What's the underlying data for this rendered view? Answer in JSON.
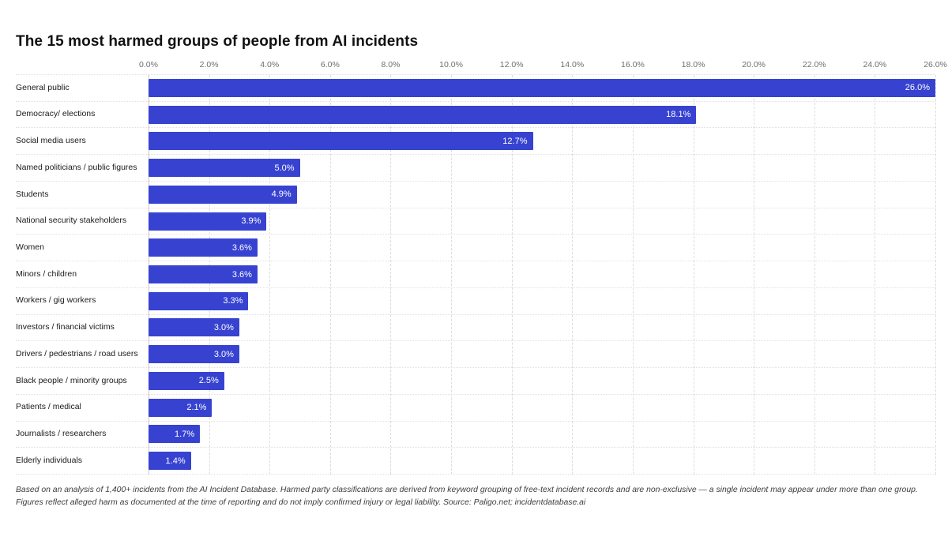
{
  "title": "The 15 most harmed groups of people from AI incidents",
  "chart_data": {
    "type": "bar",
    "orientation": "horizontal",
    "title": "The 15 most harmed groups of people from AI incidents",
    "categories": [
      "General public",
      "Democracy/ elections",
      "Social media users",
      "Named politicians / public figures",
      "Students",
      "National security stakeholders",
      "Women",
      "Minors / children",
      "Workers / gig workers",
      "Investors / financial victims",
      "Drivers / pedestrians / road users",
      "Black people / minority groups",
      "Patients / medical",
      "Journalists / researchers",
      "Elderly individuals"
    ],
    "values": [
      26.0,
      18.1,
      12.7,
      5.0,
      4.9,
      3.9,
      3.6,
      3.6,
      3.3,
      3.0,
      3.0,
      2.5,
      2.1,
      1.7,
      1.4
    ],
    "value_labels": [
      "26.0%",
      "18.1%",
      "12.7%",
      "5.0%",
      "4.9%",
      "3.9%",
      "3.6%",
      "3.6%",
      "3.3%",
      "3.0%",
      "3.0%",
      "2.5%",
      "2.1%",
      "1.7%",
      "1.4%"
    ],
    "xlim": [
      0,
      26
    ],
    "x_ticks": [
      0,
      2,
      4,
      6,
      8,
      10,
      12,
      14,
      16,
      18,
      20,
      22,
      24,
      26
    ],
    "x_tick_labels": [
      "0.0%",
      "2.0%",
      "4.0%",
      "6.0%",
      "8.0%",
      "10.0%",
      "12.0%",
      "14.0%",
      "16.0%",
      "18.0%",
      "20.0%",
      "22.0%",
      "24.0%",
      "26.0%"
    ],
    "bar_color": "#3743d0",
    "grid": "dashed-vertical",
    "legend": "none"
  },
  "footnote": {
    "line1": "Based on an analysis of 1,400+ incidents from the AI Incident Database. Harmed party classifications are derived from keyword grouping of free-text incident records and are non-exclusive — a single incident may appear under more than one group.",
    "line2": "Figures reflect alleged harm as documented at the time of reporting and do not imply confirmed injury or legal liability. Source: Paligo.net; incidentdatabase.ai"
  }
}
